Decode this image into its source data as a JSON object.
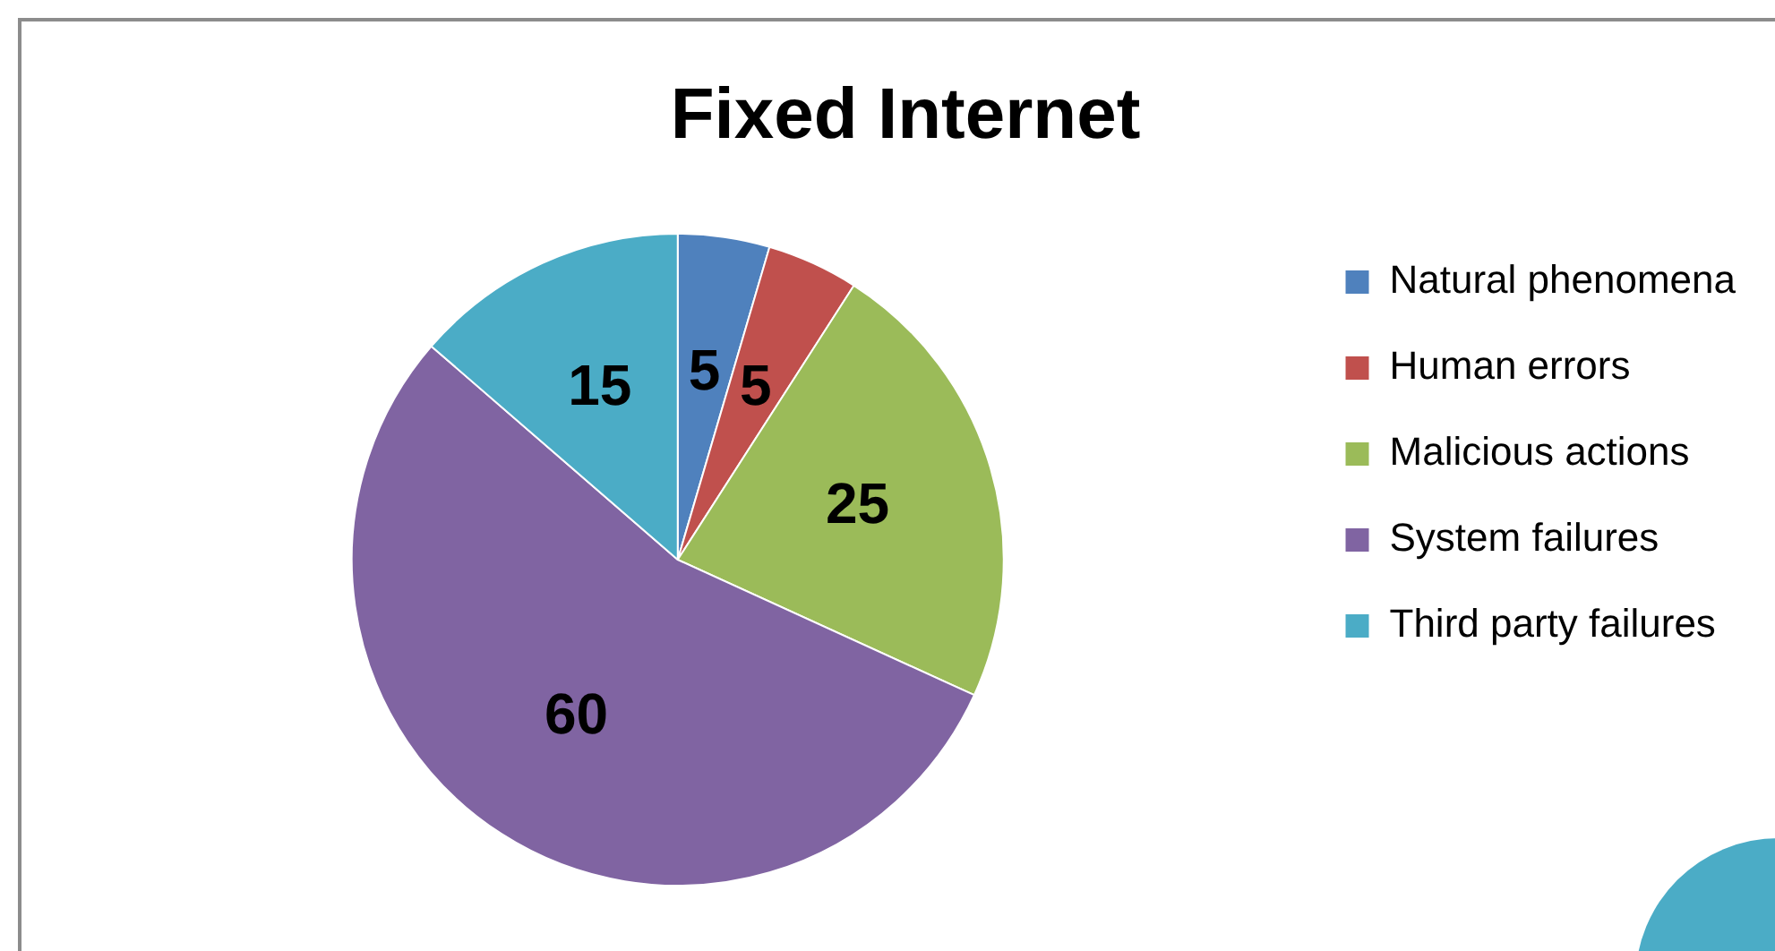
{
  "chart_data": {
    "type": "pie",
    "title": "Fixed Internet",
    "categories": [
      "Natural phenomena",
      "Human errors",
      "Malicious actions",
      "System failures",
      "Third party failures"
    ],
    "values": [
      5,
      5,
      25,
      60,
      15
    ],
    "colors": [
      "#4f81bd",
      "#c0504d",
      "#9bbb59",
      "#8064a2",
      "#4bacc6"
    ],
    "data_labels": true,
    "legend": "right"
  }
}
